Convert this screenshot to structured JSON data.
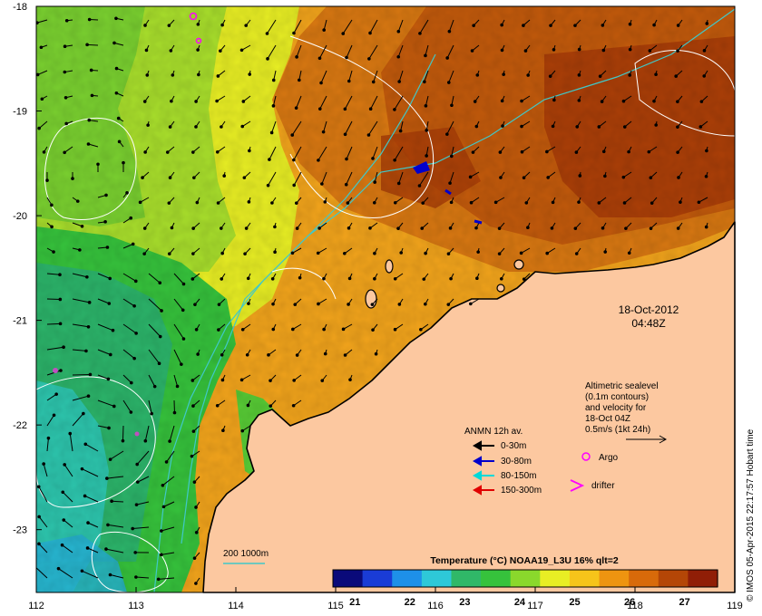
{
  "map": {
    "lon_ticks": [
      "112",
      "113",
      "114",
      "115",
      "116",
      "117",
      "118",
      "119"
    ],
    "lat_ticks": [
      "-18",
      "-19",
      "-20",
      "-21",
      "-22",
      "-23"
    ],
    "lon_range": [
      112,
      119
    ],
    "lat_range": [
      -23.6,
      -18
    ]
  },
  "timestamp": {
    "date": "18-Oct-2012",
    "time": "04:48Z"
  },
  "altimetry_note": {
    "lines": [
      "Altimetric sealevel",
      "(0.1m contours)",
      "and velocity for",
      "18-Oct 04Z",
      "0.5m/s (1kt 24h)"
    ]
  },
  "legend": {
    "title": "ANMN 12h av.",
    "items": [
      {
        "label": "0-30m",
        "color": "#000000"
      },
      {
        "label": "30-80m",
        "color": "#0000cc"
      },
      {
        "label": "80-150m",
        "color": "#00d8d8"
      },
      {
        "label": "150-300m",
        "color": "#e00000"
      }
    ],
    "argo_label": "Argo",
    "drifter_label": "drifter",
    "argo_color": "#ff00ff"
  },
  "isobath": {
    "label": "200  1000m",
    "color": "#40c8c8"
  },
  "colorbar": {
    "title": "Temperature (°C) NOAA19_L3U 16% qlt=2",
    "ticks": [
      "21",
      "22",
      "23",
      "24",
      "25",
      "26",
      "27"
    ],
    "range": [
      20.6,
      27.6
    ],
    "colors": [
      "#0a0a7a",
      "#1a3cd6",
      "#1e90e8",
      "#2ec8d8",
      "#30b868",
      "#36c23c",
      "#8ad82c",
      "#e8ee24",
      "#f6c41a",
      "#ee9410",
      "#d86a0a",
      "#b44606",
      "#901e06"
    ]
  },
  "credit": "© IMOS 05-Apr-2015 22:17:57 Hobart time",
  "colors": {
    "land": "#fcc8a0",
    "coast": "#000000",
    "contour": "#ffffff"
  }
}
